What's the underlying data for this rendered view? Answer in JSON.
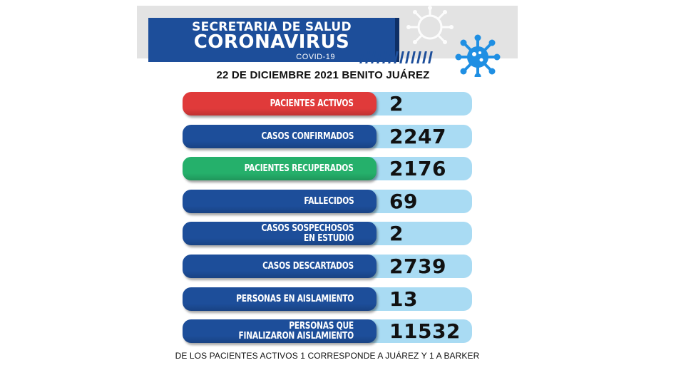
{
  "colors": {
    "blue": "#1d4e9a",
    "red": "#e03a3a",
    "green": "#25b06b",
    "light_blue": "#a9dbf3",
    "virus": "#1f8fe3"
  },
  "header": {
    "line1": "SECRETARIA DE SALUD",
    "line2": "CORONAVIRUS",
    "line3": "COVID-19",
    "virus_icon": "virus-icon"
  },
  "date_line": "22 DE DICIEMBRE  2021 BENITO JUÁREZ",
  "rows": [
    {
      "label": [
        "PACIENTES ACTIVOS"
      ],
      "value": "2",
      "color": "red"
    },
    {
      "label": [
        "CASOS CONFIRMADOS"
      ],
      "value": "2247",
      "color": "blue"
    },
    {
      "label": [
        "PACIENTES RECUPERADOS"
      ],
      "value": "2176",
      "color": "green"
    },
    {
      "label": [
        "FALLECIDOS"
      ],
      "value": "69",
      "color": "blue"
    },
    {
      "label": [
        "CASOS SOSPECHOSOS",
        "EN ESTUDIO"
      ],
      "value": "2",
      "color": "blue"
    },
    {
      "label": [
        "CASOS DESCARTADOS"
      ],
      "value": "2739",
      "color": "blue"
    },
    {
      "label": [
        "PERSONAS EN AISLAMIENTO"
      ],
      "value": "13",
      "color": "blue"
    },
    {
      "label": [
        "PERSONAS QUE",
        "FINALIZARON AISLAMIENTO"
      ],
      "value": "11532",
      "color": "blue"
    }
  ],
  "footnote": "DE LOS PACIENTES ACTIVOS  1  CORRESPONDE A JUÁREZ Y  1  A BARKER"
}
